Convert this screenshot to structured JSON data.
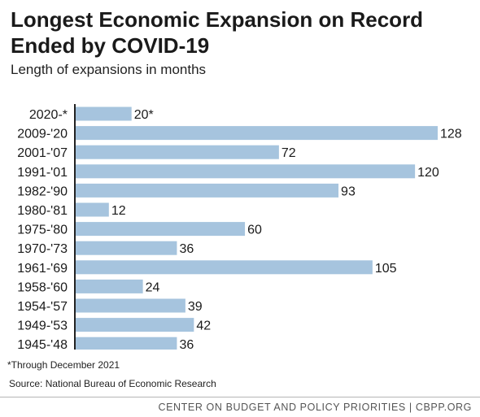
{
  "header": {
    "title": "Longest Economic Expansion on Record Ended by COVID-19",
    "subtitle": "Length of expansions in months"
  },
  "footer": {
    "footnote": "*Through December 2021",
    "source": "Source: National Bureau of Economic Research",
    "brand": "CENTER ON BUDGET AND POLICY PRIORITIES | CBPP.ORG"
  },
  "colors": {
    "bar": "#a6c4de",
    "axis": "#222222",
    "text": "#1a1a1a"
  },
  "chart_data": {
    "type": "bar",
    "orientation": "horizontal",
    "title": "Longest Economic Expansion on Record Ended by COVID-19",
    "subtitle": "Length of expansions in months",
    "categories": [
      "2020-*",
      "2009-'20",
      "2001-'07",
      "1991-'01",
      "1982-'90",
      "1980-'81",
      "1975-'80",
      "1970-'73",
      "1961-'69",
      "1958-'60",
      "1954-'57",
      "1949-'53",
      "1945-'48"
    ],
    "values": [
      20,
      128,
      72,
      120,
      93,
      12,
      60,
      36,
      105,
      24,
      39,
      42,
      36
    ],
    "value_labels": [
      "20*",
      "128",
      "72",
      "120",
      "93",
      "12",
      "60",
      "36",
      "105",
      "24",
      "39",
      "42",
      "36"
    ],
    "xlim": [
      0,
      128
    ],
    "grid": false,
    "legend": "none"
  }
}
